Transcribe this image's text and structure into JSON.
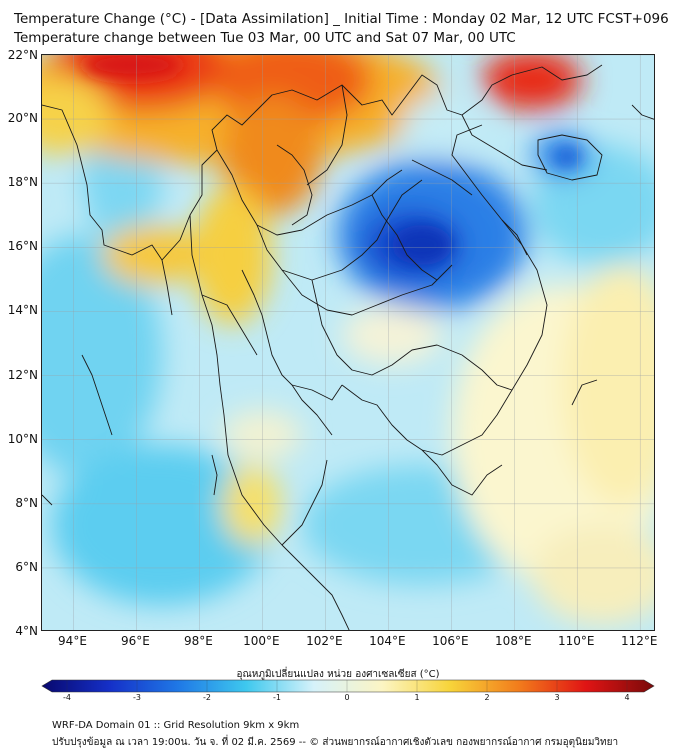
{
  "header": {
    "title_line1": "Temperature Change (°C) - [Data Assimilation] _ Initial Time : Monday 02 Mar, 12 UTC FCST+096",
    "title_line2": "Temperature change between Tue 03 Mar, 00 UTC and Sat 07 Mar, 00 UTC"
  },
  "map": {
    "lat_labels": [
      "22°N",
      "20°N",
      "18°N",
      "16°N",
      "14°N",
      "12°N",
      "10°N",
      "8°N",
      "6°N",
      "4°N"
    ],
    "lon_labels": [
      "94°E",
      "96°E",
      "98°E",
      "100°E",
      "102°E",
      "104°E",
      "106°E",
      "108°E",
      "110°E",
      "112°E"
    ],
    "lat_values": [
      22,
      20,
      18,
      16,
      14,
      12,
      10,
      8,
      6,
      4
    ],
    "lon_values": [
      94,
      96,
      98,
      100,
      102,
      104,
      106,
      108,
      110,
      112
    ],
    "lat_range": [
      4,
      22
    ],
    "lon_range": [
      93,
      112.5
    ]
  },
  "colorbar": {
    "title": "อุณหภูมิเปลี่ยนแปลง หน่วย องศาเซลเซียส (°C)",
    "ticks": [
      "-4",
      "-3",
      "-2",
      "-1",
      "0",
      "1",
      "2",
      "3",
      "4"
    ],
    "range": [
      -4,
      4
    ],
    "colors": [
      "#08086e",
      "#1530c8",
      "#1f78e6",
      "#3ec8ee",
      "#d6f2fa",
      "#fcf5c4",
      "#f7d43a",
      "#f27d1c",
      "#e01414",
      "#7a0a0a"
    ]
  },
  "footer": {
    "line1": "WRF-DA Domain 01 :: Grid Resolution 9km x 9km",
    "line2": "ปรับปรุงข้อมูล ณ เวลา 19:00น. วัน จ. ที่ 02 มี.ค. 2569 -- © ส่วนพยากรณ์อากาศเชิงตัวเลข กองพยากรณ์อากาศ กรมอุตุนิยมวิทยา"
  }
}
